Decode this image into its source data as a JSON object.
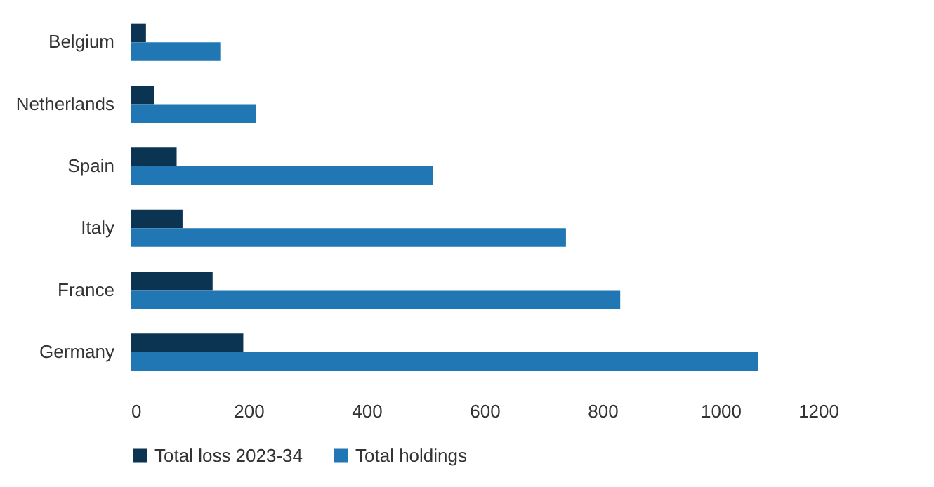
{
  "chart_data": {
    "type": "bar",
    "orientation": "horizontal",
    "categories": [
      "Belgium",
      "Netherlands",
      "Spain",
      "Italy",
      "France",
      "Germany"
    ],
    "series": [
      {
        "name": "Total loss 2023-34",
        "color": "#0b3452",
        "values": [
          26,
          40,
          78,
          88,
          139,
          191
        ]
      },
      {
        "name": "Total holdings",
        "color": "#2077b4",
        "values": [
          152,
          212,
          513,
          738,
          830,
          1064
        ]
      }
    ],
    "xlim": [
      0,
      1200
    ],
    "xticks": [
      0,
      200,
      400,
      600,
      800,
      1000,
      1200
    ],
    "grid": false,
    "legend": "bottom"
  }
}
